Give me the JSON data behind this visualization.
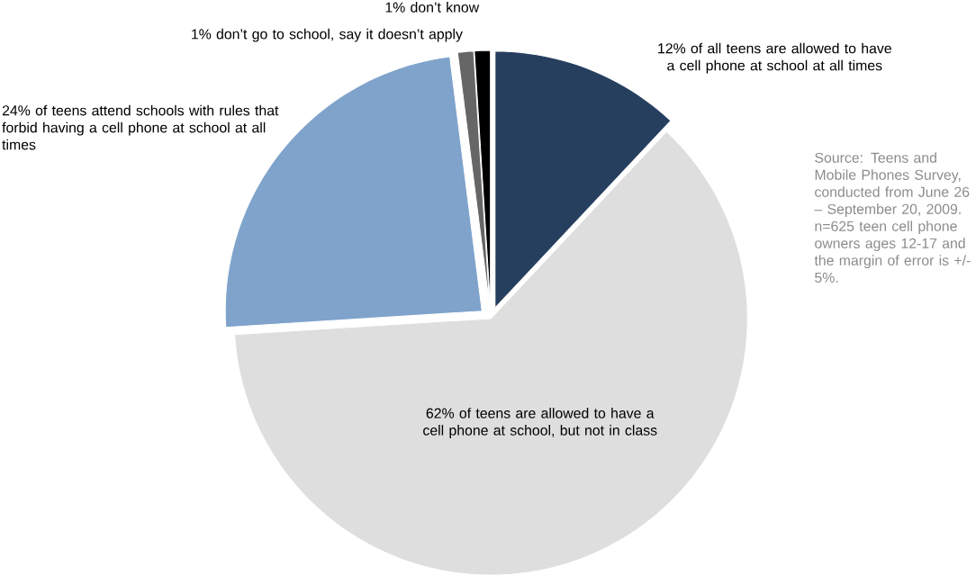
{
  "chart_data": {
    "type": "pie",
    "categories": [
      "12% of all teens are allowed to have a cell phone at school at all times",
      "62% of teens are allowed to have a cell phone at school, but not in class",
      "24% of teens attend schools with rules that forbid having a cell phone at school at all times",
      "1% don’t go to school, say it doesn’t apply",
      "1% don’t know"
    ],
    "values": [
      12,
      62,
      24,
      1,
      1
    ],
    "colors": [
      "#263f5f",
      "#dedede",
      "#7fa3cb",
      "#666666",
      "#000000"
    ],
    "annotations": [
      "Source: Teens and Mobile Phones Survey, conducted from June 26 – September 20, 2009. n=625 teen cell phone owners ages 12-17 and the margin of error is +/- 5%."
    ]
  }
}
